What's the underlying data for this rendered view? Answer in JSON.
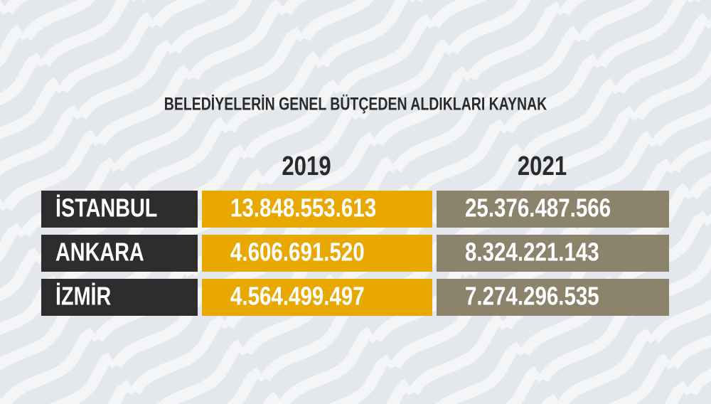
{
  "title": "BELEDİYELERİN GENEL BÜTÇEDEN ALDIKLARI KAYNAK",
  "table": {
    "header": [
      "2019",
      "2021"
    ],
    "rows": [
      [
        "İSTANBUL",
        "13.848.553.613",
        "25.376.487.566"
      ],
      [
        "ANKARA",
        "4.606.691.520",
        "8.324.221.143"
      ],
      [
        "İZMİR",
        "4.564.499.497",
        "7.274.296.535"
      ]
    ]
  }
}
